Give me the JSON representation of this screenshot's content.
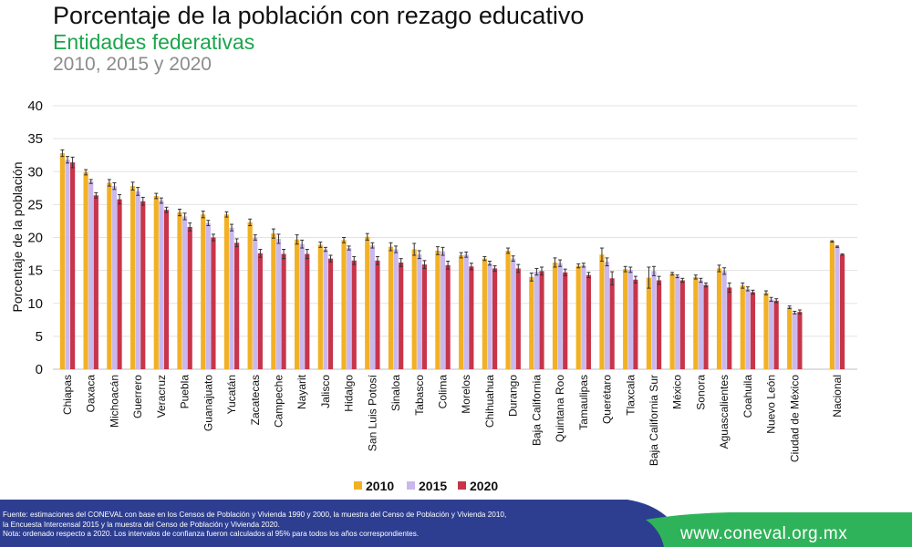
{
  "header": {
    "title": "Porcentaje de la población con rezago educativo",
    "subtitle": "Entidades federativas",
    "years": "2010, 2015 y 2020"
  },
  "colors": {
    "2010": "#f2b125",
    "2015": "#c9b8ef",
    "2020": "#c8354a",
    "error_bar": "#333333",
    "subtitle": "#1aa64b",
    "footer_blue": "#2d3e91",
    "footer_green": "#2fb35a"
  },
  "footer": {
    "line1": "Fuente: estimaciones del CONEVAL con base en los Censos de Población y Vivienda 1990 y 2000, la muestra del Censo de Población y Vivienda 2010,",
    "line2": "la Encuesta Intercensal 2015 y la muestra del Censo de Población y Vivienda 2020.",
    "line3": "Nota: ordenado respecto a 2020. Los intervalos de confianza fueron calculados al 95% para todos los años correspondientes.",
    "url": "www.coneval.org.mx"
  },
  "chart_data": {
    "type": "bar",
    "title": "Porcentaje de la población con rezago educativo",
    "ylabel": "Porcentaje de la población",
    "ylim": [
      0,
      40
    ],
    "yticks": [
      0,
      5,
      10,
      15,
      20,
      25,
      30,
      35,
      40
    ],
    "grid": true,
    "legend_position": "bottom",
    "error_bars": "95% confidence intervals",
    "categories": [
      "Chiapas",
      "Oaxaca",
      "Michoacán",
      "Guerrero",
      "Veracruz",
      "Puebla",
      "Guanajuato",
      "Yucatán",
      "Zacatecas",
      "Campeche",
      "Nayarit",
      "Jalisco",
      "Hidalgo",
      "San Luis Potosí",
      "Sinaloa",
      "Tabasco",
      "Colima",
      "Morelos",
      "Chihuahua",
      "Durango",
      "Baja California",
      "Quintana Roo",
      "Tamaulipas",
      "Querétaro",
      "Tlaxcala",
      "Baja California Sur",
      "México",
      "Sonora",
      "Aguascalientes",
      "Coahuila",
      "Nuevo León",
      "Ciudad de México",
      "Nacional"
    ],
    "series": [
      {
        "name": "2010",
        "values": [
          32.8,
          29.9,
          28.3,
          27.8,
          26.3,
          23.8,
          23.5,
          23.5,
          22.3,
          20.6,
          19.7,
          18.9,
          19.6,
          20.1,
          18.6,
          18.2,
          18.0,
          17.3,
          16.8,
          18.0,
          14.0,
          16.2,
          15.7,
          17.4,
          15.2,
          13.9,
          14.5,
          14.0,
          15.3,
          12.7,
          11.6,
          9.4,
          19.4
        ],
        "errors": [
          0.5,
          0.4,
          0.5,
          0.6,
          0.4,
          0.5,
          0.5,
          0.4,
          0.5,
          0.7,
          0.7,
          0.4,
          0.4,
          0.5,
          0.6,
          0.9,
          0.6,
          0.4,
          0.3,
          0.4,
          0.6,
          0.7,
          0.3,
          1.0,
          0.4,
          1.6,
          0.2,
          0.3,
          0.5,
          0.4,
          0.3,
          0.2,
          0.1
        ]
      },
      {
        "name": "2015",
        "values": [
          31.8,
          28.5,
          27.8,
          27.0,
          25.6,
          23.2,
          22.2,
          21.5,
          20.0,
          19.8,
          19.0,
          18.2,
          18.4,
          18.8,
          18.2,
          17.4,
          17.9,
          17.4,
          16.1,
          16.8,
          14.8,
          16.1,
          15.8,
          16.3,
          15.1,
          14.9,
          14.1,
          13.5,
          14.9,
          12.2,
          10.6,
          8.6,
          18.6
        ],
        "errors": [
          0.5,
          0.3,
          0.5,
          0.6,
          0.4,
          0.5,
          0.4,
          0.5,
          0.4,
          0.7,
          0.6,
          0.3,
          0.3,
          0.4,
          0.5,
          0.6,
          0.6,
          0.4,
          0.3,
          0.4,
          0.5,
          0.5,
          0.3,
          0.6,
          0.4,
          0.7,
          0.2,
          0.3,
          0.5,
          0.3,
          0.3,
          0.2,
          0.1
        ]
      },
      {
        "name": "2020",
        "values": [
          31.4,
          26.4,
          25.8,
          25.5,
          24.2,
          21.6,
          20.0,
          19.2,
          17.6,
          17.5,
          17.5,
          16.8,
          16.5,
          16.5,
          16.2,
          15.9,
          15.8,
          15.6,
          15.3,
          15.3,
          14.9,
          14.7,
          14.3,
          13.8,
          13.6,
          13.5,
          13.5,
          12.8,
          12.4,
          11.7,
          10.4,
          8.7,
          17.4
        ],
        "errors": [
          0.8,
          0.4,
          0.7,
          0.6,
          0.4,
          0.6,
          0.5,
          0.6,
          0.6,
          0.7,
          0.7,
          0.5,
          0.6,
          0.6,
          0.6,
          0.6,
          0.6,
          0.5,
          0.4,
          0.6,
          0.6,
          0.5,
          0.4,
          1.0,
          0.5,
          0.6,
          0.3,
          0.3,
          0.7,
          0.3,
          0.3,
          0.3,
          0.1
        ]
      }
    ]
  }
}
